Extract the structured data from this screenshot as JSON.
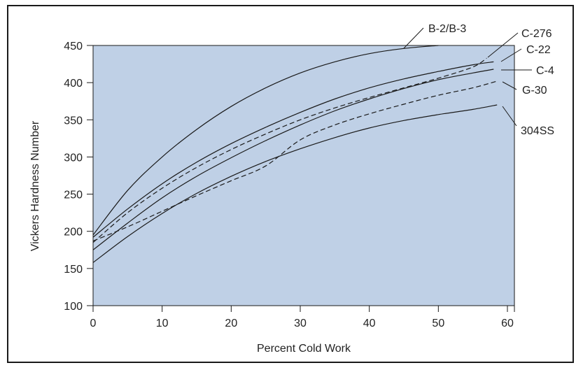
{
  "chart_data": {
    "type": "line",
    "title": "",
    "xlabel": "Percent Cold Work",
    "ylabel": "Vickers Hardness Number",
    "xlim": [
      0,
      60
    ],
    "ylim": [
      100,
      450
    ],
    "xticks": [
      "0",
      "10",
      "20",
      "30",
      "40",
      "50",
      "60"
    ],
    "yticks": [
      "100",
      "150",
      "200",
      "250",
      "300",
      "350",
      "400",
      "450"
    ],
    "grid": false,
    "legend": "none (series labeled directly with leader lines)",
    "plot_background": "#bfd0e6",
    "series": [
      {
        "name": "B-2/B-3",
        "style": "solid",
        "x": [
          0,
          5,
          10,
          15,
          20,
          25,
          30,
          35,
          40,
          45,
          50
        ],
        "y": [
          195,
          255,
          300,
          337,
          368,
          393,
          413,
          428,
          439,
          446,
          450
        ]
      },
      {
        "name": "C-276",
        "style": "dashed",
        "x": [
          0,
          5,
          10,
          15,
          20,
          25,
          30,
          35,
          40,
          45,
          50,
          55,
          57
        ],
        "y": [
          185,
          225,
          258,
          286,
          310,
          331,
          350,
          366,
          380,
          393,
          406,
          421,
          433
        ]
      },
      {
        "name": "C-22",
        "style": "solid",
        "x": [
          0,
          5,
          10,
          15,
          20,
          25,
          30,
          35,
          40,
          45,
          50,
          55,
          58
        ],
        "y": [
          192,
          230,
          264,
          293,
          318,
          340,
          360,
          378,
          393,
          405,
          415,
          424,
          428
        ]
      },
      {
        "name": "C-4",
        "style": "solid",
        "x": [
          0,
          5,
          10,
          15,
          20,
          25,
          30,
          35,
          40,
          45,
          50,
          55,
          58
        ],
        "y": [
          175,
          211,
          245,
          274,
          299,
          322,
          343,
          362,
          378,
          392,
          404,
          413,
          418
        ]
      },
      {
        "name": "G-30",
        "style": "dashed",
        "x": [
          0,
          5,
          10,
          15,
          20,
          25,
          30,
          35,
          40,
          45,
          50,
          55,
          58.5
        ],
        "y": [
          187,
          206,
          227,
          248,
          268,
          288,
          323,
          343,
          358,
          371,
          383,
          393,
          402
        ]
      },
      {
        "name": "304SS",
        "style": "solid",
        "x": [
          0,
          5,
          10,
          15,
          20,
          25,
          30,
          35,
          40,
          45,
          50,
          55,
          58.5
        ],
        "y": [
          158,
          193,
          224,
          251,
          274,
          294,
          311,
          326,
          339,
          349,
          357,
          364,
          370
        ]
      }
    ]
  }
}
